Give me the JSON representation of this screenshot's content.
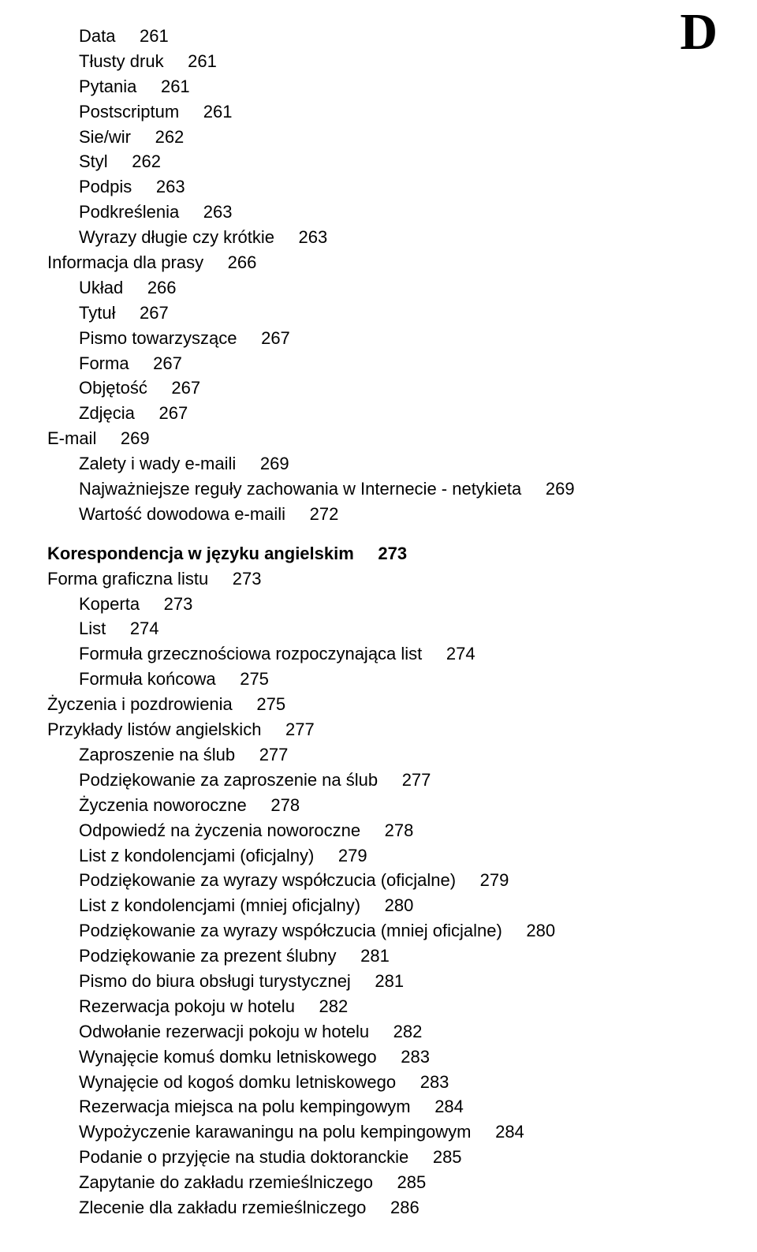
{
  "corner_letter": "D",
  "entries": [
    {
      "text": "Data",
      "page": "261",
      "indent": 1,
      "bold": false,
      "gap": false
    },
    {
      "text": "Tłusty druk",
      "page": "261",
      "indent": 1,
      "bold": false,
      "gap": false
    },
    {
      "text": "Pytania",
      "page": "261",
      "indent": 1,
      "bold": false,
      "gap": false
    },
    {
      "text": "Postscriptum",
      "page": "261",
      "indent": 1,
      "bold": false,
      "gap": false
    },
    {
      "text": "Sie/wir",
      "page": "262",
      "indent": 1,
      "bold": false,
      "gap": false
    },
    {
      "text": "Styl",
      "page": "262",
      "indent": 1,
      "bold": false,
      "gap": false
    },
    {
      "text": "Podpis",
      "page": "263",
      "indent": 1,
      "bold": false,
      "gap": false
    },
    {
      "text": "Podkreślenia",
      "page": "263",
      "indent": 1,
      "bold": false,
      "gap": false
    },
    {
      "text": "Wyrazy długie czy krótkie",
      "page": "263",
      "indent": 1,
      "bold": false,
      "gap": false
    },
    {
      "text": "Informacja dla prasy",
      "page": "266",
      "indent": 0,
      "bold": false,
      "gap": false
    },
    {
      "text": "Układ",
      "page": "266",
      "indent": 1,
      "bold": false,
      "gap": false
    },
    {
      "text": "Tytuł",
      "page": "267",
      "indent": 1,
      "bold": false,
      "gap": false
    },
    {
      "text": "Pismo towarzyszące",
      "page": "267",
      "indent": 1,
      "bold": false,
      "gap": false
    },
    {
      "text": "Forma",
      "page": "267",
      "indent": 1,
      "bold": false,
      "gap": false
    },
    {
      "text": "Objętość",
      "page": "267",
      "indent": 1,
      "bold": false,
      "gap": false
    },
    {
      "text": "Zdjęcia",
      "page": "267",
      "indent": 1,
      "bold": false,
      "gap": false
    },
    {
      "text": "E-mail",
      "page": "269",
      "indent": 0,
      "bold": false,
      "gap": false
    },
    {
      "text": "Zalety i wady e-maili",
      "page": "269",
      "indent": 1,
      "bold": false,
      "gap": false
    },
    {
      "text": "Najważniejsze reguły zachowania w Internecie - netykieta",
      "page": "269",
      "indent": 1,
      "bold": false,
      "gap": false
    },
    {
      "text": "Wartość dowodowa e-maili",
      "page": "272",
      "indent": 1,
      "bold": false,
      "gap": false
    },
    {
      "text": "Korespondencja w języku angielskim",
      "page": "273",
      "indent": 0,
      "bold": true,
      "gap": true
    },
    {
      "text": "Forma graficzna listu",
      "page": "273",
      "indent": 0,
      "bold": false,
      "gap": false
    },
    {
      "text": "Koperta",
      "page": "273",
      "indent": 1,
      "bold": false,
      "gap": false
    },
    {
      "text": "List",
      "page": "274",
      "indent": 1,
      "bold": false,
      "gap": false
    },
    {
      "text": "Formuła grzecznościowa rozpoczynająca list",
      "page": "274",
      "indent": 1,
      "bold": false,
      "gap": false
    },
    {
      "text": "Formuła końcowa",
      "page": "275",
      "indent": 1,
      "bold": false,
      "gap": false
    },
    {
      "text": "Życzenia i pozdrowienia",
      "page": "275",
      "indent": 0,
      "bold": false,
      "gap": false
    },
    {
      "text": "Przykłady listów angielskich",
      "page": "277",
      "indent": 0,
      "bold": false,
      "gap": false
    },
    {
      "text": "Zaproszenie na ślub",
      "page": "277",
      "indent": 1,
      "bold": false,
      "gap": false
    },
    {
      "text": "Podziękowanie za zaproszenie na ślub",
      "page": "277",
      "indent": 1,
      "bold": false,
      "gap": false
    },
    {
      "text": "Życzenia noworoczne",
      "page": "278",
      "indent": 1,
      "bold": false,
      "gap": false
    },
    {
      "text": "Odpowiedź na życzenia noworoczne",
      "page": "278",
      "indent": 1,
      "bold": false,
      "gap": false
    },
    {
      "text": "List z kondolencjami (oficjalny)",
      "page": "279",
      "indent": 1,
      "bold": false,
      "gap": false
    },
    {
      "text": "Podziękowanie za wyrazy współczucia (oficjalne)",
      "page": "279",
      "indent": 1,
      "bold": false,
      "gap": false
    },
    {
      "text": "List z kondolencjami (mniej oficjalny)",
      "page": "280",
      "indent": 1,
      "bold": false,
      "gap": false
    },
    {
      "text": "Podziękowanie za wyrazy współczucia (mniej oficjalne)",
      "page": "280",
      "indent": 1,
      "bold": false,
      "gap": false
    },
    {
      "text": "Podziękowanie za prezent ślubny",
      "page": "281",
      "indent": 1,
      "bold": false,
      "gap": false
    },
    {
      "text": "Pismo do biura obsługi turystycznej",
      "page": "281",
      "indent": 1,
      "bold": false,
      "gap": false
    },
    {
      "text": "Rezerwacja pokoju w hotelu",
      "page": "282",
      "indent": 1,
      "bold": false,
      "gap": false
    },
    {
      "text": "Odwołanie rezerwacji pokoju w hotelu",
      "page": "282",
      "indent": 1,
      "bold": false,
      "gap": false
    },
    {
      "text": "Wynajęcie komuś domku letniskowego",
      "page": "283",
      "indent": 1,
      "bold": false,
      "gap": false
    },
    {
      "text": "Wynajęcie od kogoś domku letniskowego",
      "page": "283",
      "indent": 1,
      "bold": false,
      "gap": false
    },
    {
      "text": "Rezerwacja miejsca na polu kempingowym",
      "page": "284",
      "indent": 1,
      "bold": false,
      "gap": false
    },
    {
      "text": "Wypożyczenie karawaningu na polu kempingowym",
      "page": "284",
      "indent": 1,
      "bold": false,
      "gap": false
    },
    {
      "text": "Podanie o przyjęcie na studia doktoranckie",
      "page": "285",
      "indent": 1,
      "bold": false,
      "gap": false
    },
    {
      "text": "Zapytanie do zakładu rzemieślniczego",
      "page": "285",
      "indent": 1,
      "bold": false,
      "gap": false
    },
    {
      "text": "Zlecenie dla zakładu rzemieślniczego",
      "page": "286",
      "indent": 1,
      "bold": false,
      "gap": false
    }
  ],
  "gap_between_text_and_page": "     "
}
